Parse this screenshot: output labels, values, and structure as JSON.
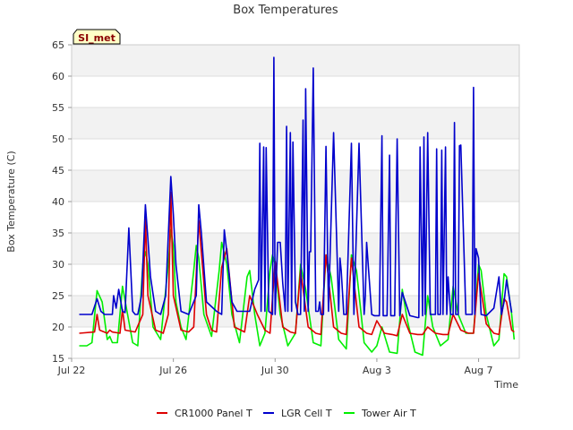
{
  "chart_data": {
    "type": "line",
    "title": "Box Temperatures",
    "xlabel": "Time",
    "ylabel": "Box Temperature (C)",
    "site_label": "SI_met",
    "xlim": [
      0,
      17.6
    ],
    "ylim": [
      15,
      65
    ],
    "x_unit": "days since Jul 22",
    "x_ticks": [
      {
        "x": 0,
        "label": "Jul 22"
      },
      {
        "x": 4,
        "label": "Jul 26"
      },
      {
        "x": 8,
        "label": "Jul 30"
      },
      {
        "x": 12,
        "label": "Aug 3"
      },
      {
        "x": 16,
        "label": "Aug 7"
      }
    ],
    "y_ticks": [
      15,
      20,
      25,
      30,
      35,
      40,
      45,
      50,
      55,
      60,
      65
    ],
    "grid": true,
    "legend_position": "bottom-center",
    "series": [
      {
        "name": "CR1000 Panel T",
        "color": "#dd0000",
        "x": [
          0.3,
          0.9,
          1.0,
          1.1,
          1.4,
          1.5,
          1.6,
          1.9,
          2.0,
          2.1,
          2.5,
          2.8,
          2.9,
          3.0,
          3.3,
          3.5,
          3.6,
          3.8,
          3.9,
          4.0,
          4.3,
          4.6,
          4.8,
          5.0,
          5.3,
          5.5,
          5.7,
          5.9,
          6.1,
          6.4,
          6.8,
          7.0,
          7.3,
          7.6,
          7.8,
          8.0,
          8.3,
          8.6,
          8.8,
          9.0,
          9.3,
          9.6,
          9.8,
          10.0,
          10.3,
          10.6,
          10.8,
          11.0,
          11.3,
          11.6,
          11.8,
          12.0,
          12.3,
          12.6,
          12.8,
          13.0,
          13.3,
          13.6,
          13.8,
          14.0,
          14.3,
          14.6,
          14.8,
          15.0,
          15.3,
          15.6,
          15.8,
          16.0,
          16.3,
          16.6,
          16.8,
          17.0,
          17.1,
          17.3,
          17.4
        ],
        "y": [
          19.0,
          19.2,
          22.0,
          19.5,
          19.0,
          19.5,
          19.2,
          19.0,
          22.8,
          19.5,
          19.2,
          22.0,
          37.5,
          25.0,
          19.5,
          19.2,
          19.0,
          22.0,
          41.5,
          25.0,
          19.5,
          19.2,
          20.0,
          37.0,
          22.0,
          19.5,
          19.2,
          29.5,
          32.5,
          20.0,
          19.2,
          25.0,
          22.0,
          19.5,
          19.0,
          30.5,
          20.0,
          19.2,
          19.0,
          29.0,
          20.0,
          19.0,
          18.8,
          31.5,
          20.0,
          19.0,
          18.8,
          31.0,
          20.0,
          19.0,
          18.8,
          21.0,
          19.0,
          18.8,
          18.6,
          22.0,
          19.0,
          18.8,
          18.8,
          20.0,
          19.0,
          18.8,
          18.8,
          22.0,
          19.5,
          19.0,
          19.0,
          28.5,
          20.5,
          19.0,
          18.8,
          24.5,
          24.0,
          19.5,
          19.2
        ]
      },
      {
        "name": "LGR Cell T",
        "color": "#0000cc",
        "x": [
          0.3,
          0.8,
          1.0,
          1.15,
          1.3,
          1.6,
          1.65,
          1.75,
          1.85,
          2.0,
          2.1,
          2.25,
          2.4,
          2.5,
          2.6,
          2.75,
          2.9,
          3.0,
          3.1,
          3.3,
          3.5,
          3.7,
          3.9,
          4.0,
          4.1,
          4.3,
          4.6,
          4.9,
          5.0,
          5.1,
          5.3,
          5.7,
          5.9,
          6.0,
          6.1,
          6.3,
          6.5,
          7.0,
          7.2,
          7.35,
          7.4,
          7.45,
          7.55,
          7.6,
          7.65,
          7.75,
          7.9,
          7.95,
          8.0,
          8.1,
          8.2,
          8.3,
          8.4,
          8.45,
          8.5,
          8.6,
          8.65,
          8.7,
          8.8,
          8.9,
          9.0,
          9.1,
          9.15,
          9.2,
          9.3,
          9.35,
          9.4,
          9.5,
          9.6,
          9.7,
          9.75,
          9.8,
          9.9,
          10.0,
          10.1,
          10.3,
          10.5,
          10.55,
          10.6,
          10.7,
          10.8,
          11.0,
          11.1,
          11.3,
          11.5,
          11.55,
          11.6,
          11.8,
          11.9,
          12.0,
          12.1,
          12.2,
          12.25,
          12.3,
          12.4,
          12.5,
          12.55,
          12.6,
          12.7,
          12.8,
          12.9,
          13.0,
          13.3,
          13.6,
          13.65,
          13.7,
          13.8,
          13.85,
          13.9,
          14.0,
          14.1,
          14.3,
          14.35,
          14.4,
          14.5,
          14.55,
          14.6,
          14.7,
          14.75,
          14.8,
          14.9,
          15.0,
          15.05,
          15.1,
          15.2,
          15.25,
          15.3,
          15.5,
          15.75,
          15.8,
          15.85,
          15.9,
          16.0,
          16.1,
          16.3,
          16.6,
          16.8,
          16.9,
          17.0,
          17.1,
          17.3
        ],
        "y": [
          22.0,
          22.0,
          24.5,
          22.5,
          22.0,
          22.0,
          25.0,
          23.0,
          26.0,
          22.5,
          22.3,
          35.8,
          22.5,
          22.0,
          22.0,
          25.0,
          39.5,
          34.0,
          28.0,
          22.5,
          22.0,
          25.0,
          44.0,
          38.0,
          30.0,
          22.5,
          22.0,
          25.0,
          39.5,
          35.0,
          24.0,
          22.5,
          22.0,
          35.5,
          32.0,
          24.0,
          22.5,
          22.5,
          26.0,
          27.5,
          49.3,
          22.5,
          48.7,
          22.5,
          48.6,
          22.5,
          22.0,
          63.0,
          22.0,
          33.5,
          33.5,
          27.0,
          22.5,
          52.0,
          22.5,
          51.0,
          22.5,
          49.5,
          24.0,
          22.0,
          22.0,
          53.0,
          22.5,
          58.0,
          22.5,
          32.0,
          32.0,
          61.3,
          22.5,
          22.5,
          24.0,
          22.0,
          22.0,
          48.8,
          22.5,
          51.0,
          22.5,
          31.0,
          29.0,
          22.0,
          22.0,
          49.3,
          22.0,
          49.3,
          22.0,
          25.0,
          33.5,
          22.0,
          21.8,
          21.8,
          21.8,
          50.5,
          21.8,
          21.8,
          21.8,
          47.4,
          21.8,
          21.8,
          21.8,
          50.0,
          21.8,
          25.5,
          21.8,
          21.5,
          21.5,
          48.7,
          21.8,
          50.3,
          22.0,
          51.0,
          22.0,
          22.0,
          48.4,
          22.0,
          22.0,
          48.2,
          22.0,
          48.7,
          22.0,
          28.0,
          22.0,
          22.0,
          52.6,
          22.0,
          22.0,
          48.9,
          49.0,
          22.0,
          22.0,
          58.2,
          22.0,
          32.5,
          31.0,
          22.0,
          21.8,
          23.0,
          28.0,
          22.0,
          24.0,
          27.5,
          22.3
        ]
      },
      {
        "name": "Tower Air T",
        "color": "#00ee00",
        "x": [
          0.3,
          0.6,
          0.8,
          1.0,
          1.2,
          1.4,
          1.5,
          1.6,
          1.8,
          2.0,
          2.2,
          2.4,
          2.6,
          2.8,
          2.9,
          3.0,
          3.2,
          3.5,
          3.8,
          3.9,
          4.0,
          4.1,
          4.3,
          4.5,
          4.8,
          4.9,
          5.0,
          5.2,
          5.5,
          5.8,
          5.9,
          6.1,
          6.3,
          6.6,
          6.9,
          7.0,
          7.2,
          7.4,
          7.6,
          7.8,
          7.9,
          8.0,
          8.2,
          8.5,
          8.8,
          9.0,
          9.2,
          9.5,
          9.8,
          10.0,
          10.2,
          10.5,
          10.8,
          11.0,
          11.2,
          11.5,
          11.8,
          12.0,
          12.2,
          12.5,
          12.8,
          13.0,
          13.2,
          13.5,
          13.8,
          14.0,
          14.2,
          14.5,
          14.8,
          15.0,
          15.2,
          15.5,
          15.8,
          16.0,
          16.1,
          16.3,
          16.6,
          16.8,
          17.0,
          17.1,
          17.3,
          17.4
        ],
        "y": [
          17.0,
          17.0,
          17.5,
          25.8,
          24.0,
          18.0,
          18.5,
          17.5,
          17.5,
          26.5,
          22.0,
          17.5,
          17.0,
          30.0,
          32.0,
          30.0,
          20.0,
          18.0,
          30.0,
          35.5,
          33.0,
          24.0,
          20.0,
          18.0,
          29.0,
          33.0,
          31.0,
          22.0,
          18.5,
          29.0,
          33.5,
          30.0,
          22.0,
          17.5,
          28.0,
          29.0,
          22.0,
          17.0,
          19.0,
          29.0,
          31.5,
          30.0,
          22.0,
          17.0,
          19.0,
          30.0,
          26.0,
          17.5,
          17.0,
          31.5,
          28.0,
          18.0,
          16.5,
          31.5,
          29.0,
          17.5,
          16.0,
          17.0,
          20.0,
          16.0,
          15.8,
          26.0,
          21.0,
          16.0,
          15.5,
          25.0,
          20.0,
          17.0,
          18.0,
          26.5,
          22.0,
          19.0,
          19.0,
          30.0,
          29.0,
          22.0,
          17.0,
          18.0,
          28.5,
          28.0,
          22.0,
          18.0
        ]
      }
    ]
  }
}
